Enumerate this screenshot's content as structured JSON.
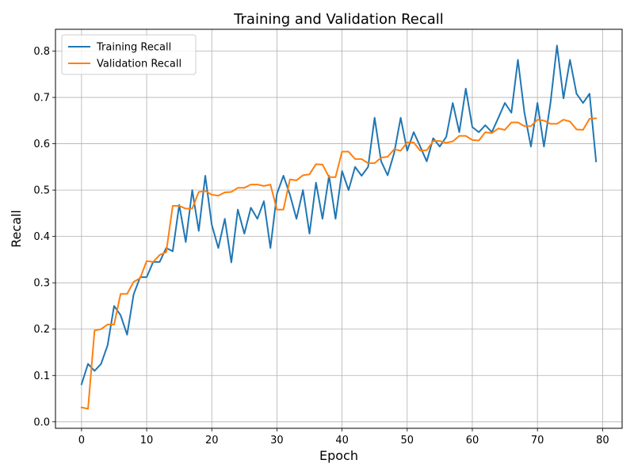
{
  "chart_data": {
    "type": "line",
    "title": "Training and Validation Recall",
    "xlabel": "Epoch",
    "ylabel": "Recall",
    "xlim": [
      -4,
      83
    ],
    "ylim": [
      -0.014,
      0.847
    ],
    "xticks": [
      0,
      10,
      20,
      30,
      40,
      50,
      60,
      70,
      80
    ],
    "xtick_labels": [
      "0",
      "10",
      "20",
      "30",
      "40",
      "50",
      "60",
      "70",
      "80"
    ],
    "yticks": [
      0.0,
      0.1,
      0.2,
      0.3,
      0.4,
      0.5,
      0.6,
      0.7,
      0.8
    ],
    "ytick_labels": [
      "0.0",
      "0.1",
      "0.2",
      "0.3",
      "0.4",
      "0.5",
      "0.6",
      "0.7",
      "0.8"
    ],
    "grid": true,
    "legend": {
      "placement": "upper-left"
    },
    "x": [
      0,
      1,
      2,
      3,
      4,
      5,
      6,
      7,
      8,
      9,
      10,
      11,
      12,
      13,
      14,
      15,
      16,
      17,
      18,
      19,
      20,
      21,
      22,
      23,
      24,
      25,
      26,
      27,
      28,
      29,
      30,
      31,
      32,
      33,
      34,
      35,
      36,
      37,
      38,
      39,
      40,
      41,
      42,
      43,
      44,
      45,
      46,
      47,
      48,
      49,
      50,
      51,
      52,
      53,
      54,
      55,
      56,
      57,
      58,
      59,
      60,
      61,
      62,
      63,
      64,
      65,
      66,
      67,
      68,
      69,
      70,
      71,
      72,
      73,
      74,
      75,
      76,
      77,
      78,
      79
    ],
    "series": [
      {
        "name": "Training Recall",
        "color": "#1f77b4",
        "values": [
          0.081,
          0.125,
          0.11,
          0.125,
          0.165,
          0.25,
          0.23,
          0.188,
          0.275,
          0.312,
          0.312,
          0.345,
          0.345,
          0.375,
          0.368,
          0.468,
          0.388,
          0.5,
          0.412,
          0.531,
          0.425,
          0.375,
          0.438,
          0.344,
          0.458,
          0.406,
          0.462,
          0.438,
          0.476,
          0.375,
          0.492,
          0.531,
          0.49,
          0.438,
          0.5,
          0.406,
          0.516,
          0.438,
          0.531,
          0.438,
          0.541,
          0.5,
          0.55,
          0.531,
          0.55,
          0.656,
          0.562,
          0.532,
          0.58,
          0.656,
          0.585,
          0.625,
          0.594,
          0.562,
          0.612,
          0.594,
          0.615,
          0.688,
          0.625,
          0.719,
          0.636,
          0.625,
          0.64,
          0.625,
          0.656,
          0.688,
          0.667,
          0.781,
          0.667,
          0.594,
          0.688,
          0.594,
          0.688,
          0.812,
          0.698,
          0.781,
          0.708,
          0.688,
          0.708,
          0.562
        ]
      },
      {
        "name": "Validation Recall",
        "color": "#ff7f0e",
        "values": [
          0.031,
          0.028,
          0.197,
          0.2,
          0.21,
          0.21,
          0.276,
          0.276,
          0.302,
          0.31,
          0.347,
          0.345,
          0.36,
          0.366,
          0.466,
          0.466,
          0.46,
          0.46,
          0.496,
          0.498,
          0.49,
          0.488,
          0.495,
          0.496,
          0.505,
          0.505,
          0.512,
          0.512,
          0.509,
          0.512,
          0.458,
          0.458,
          0.523,
          0.521,
          0.532,
          0.534,
          0.556,
          0.555,
          0.528,
          0.528,
          0.583,
          0.583,
          0.567,
          0.567,
          0.558,
          0.558,
          0.57,
          0.572,
          0.588,
          0.585,
          0.603,
          0.603,
          0.585,
          0.586,
          0.606,
          0.606,
          0.602,
          0.605,
          0.617,
          0.617,
          0.608,
          0.607,
          0.625,
          0.623,
          0.633,
          0.63,
          0.646,
          0.646,
          0.638,
          0.638,
          0.652,
          0.65,
          0.643,
          0.643,
          0.652,
          0.648,
          0.631,
          0.63,
          0.654,
          0.655
        ]
      }
    ]
  }
}
